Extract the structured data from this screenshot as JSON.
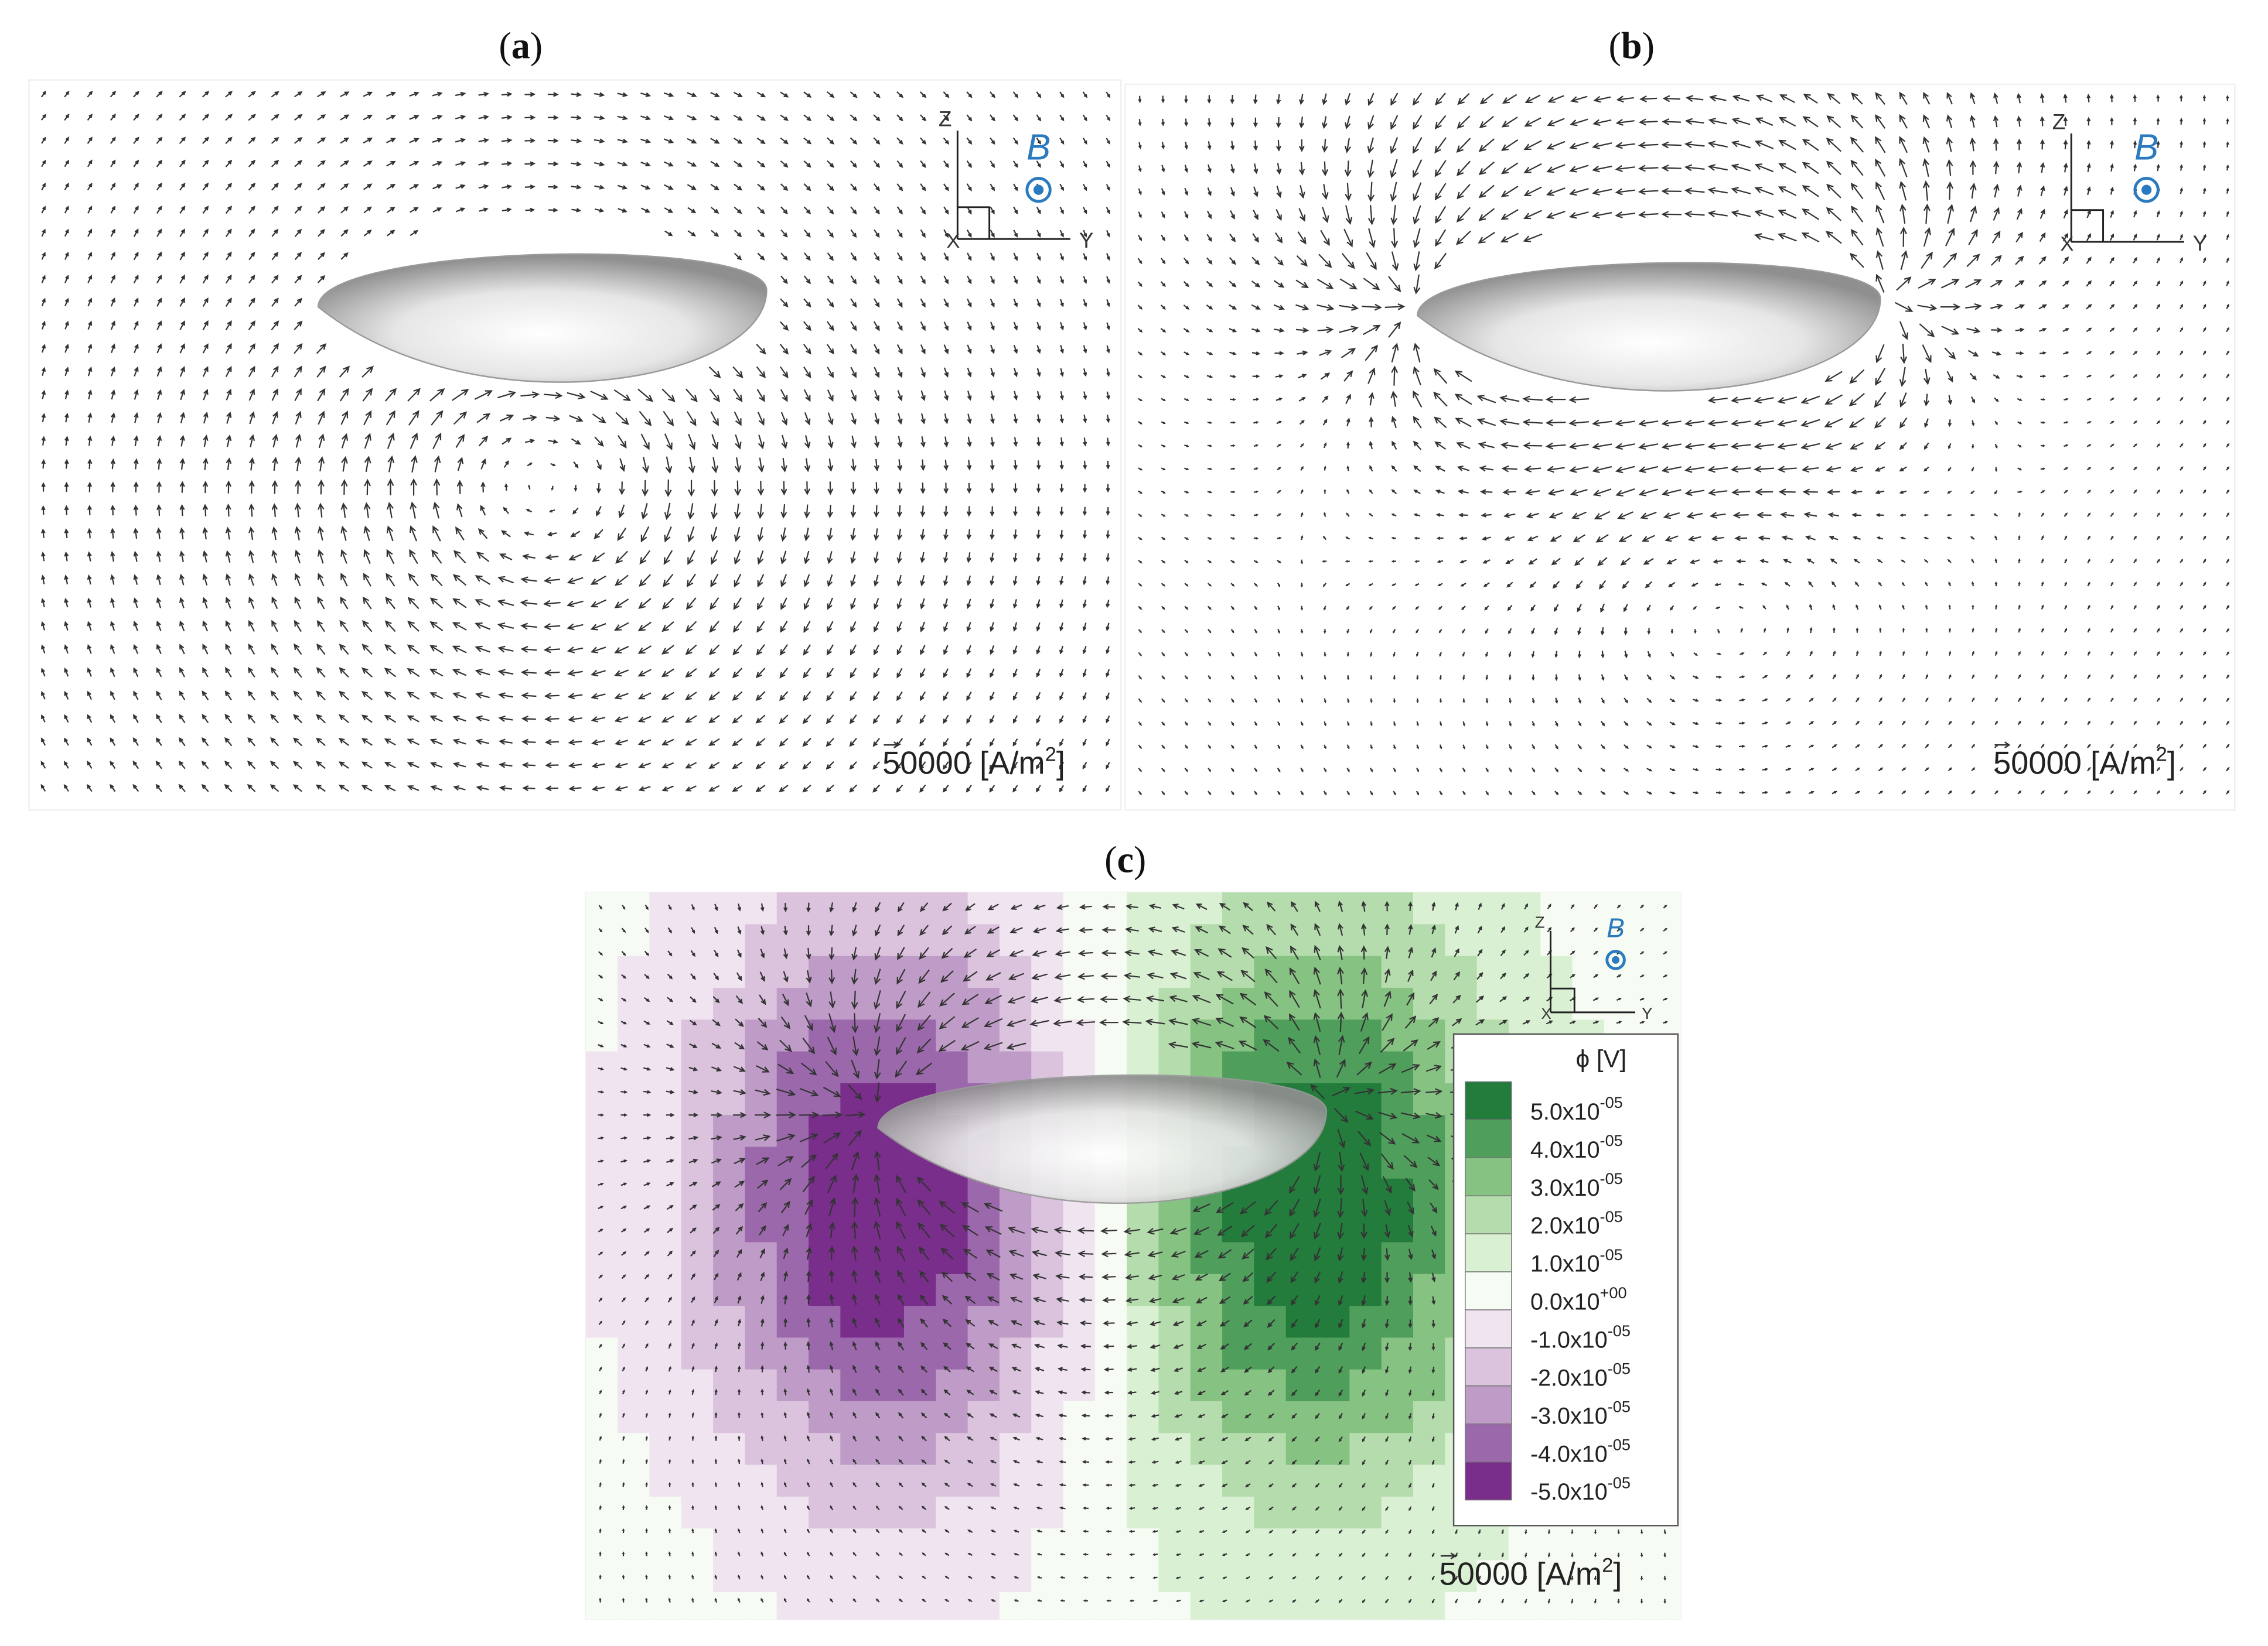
{
  "panels": [
    {
      "label": {
        "open": "(",
        "letter": "a",
        "close": ")"
      },
      "axes": {
        "z": "Z",
        "y": "Y",
        "x": "X"
      },
      "field": "B",
      "scale": {
        "value": "50000",
        "unit": "[A/m",
        "sup": "2",
        "close": "]"
      }
    },
    {
      "label": {
        "open": "(",
        "letter": "b",
        "close": ")"
      },
      "axes": {
        "z": "Z",
        "y": "Y",
        "x": "X"
      },
      "field": "B",
      "scale": {
        "value": "50000",
        "unit": "[A/m",
        "sup": "2",
        "close": "]"
      }
    },
    {
      "label": {
        "open": "(",
        "letter": "c",
        "close": ")"
      },
      "axes": {
        "z": "Z",
        "y": "Y",
        "x": "X"
      },
      "field": "B",
      "scale": {
        "value": "50000",
        "unit": "[A/m",
        "sup": "2",
        "close": "]"
      }
    }
  ],
  "legend": {
    "title": "ϕ [V]",
    "entries": [
      {
        "mantissa": "5.0x10",
        "exponent": "-05",
        "color": "#237c3c"
      },
      {
        "mantissa": "4.0x10",
        "exponent": "-05",
        "color": "#4f9e5c"
      },
      {
        "mantissa": "3.0x10",
        "exponent": "-05",
        "color": "#86c282"
      },
      {
        "mantissa": "2.0x10",
        "exponent": "-05",
        "color": "#b5dcac"
      },
      {
        "mantissa": "1.0x10",
        "exponent": "-05",
        "color": "#daf0d3"
      },
      {
        "mantissa": "0.0x10",
        "exponent": "+00",
        "color": "#f6fbf4"
      },
      {
        "mantissa": "-1.0x10",
        "exponent": "-05",
        "color": "#f1e4f1"
      },
      {
        "mantissa": "-2.0x10",
        "exponent": "-05",
        "color": "#dbc3de"
      },
      {
        "mantissa": "-3.0x10",
        "exponent": "-05",
        "color": "#bf9cc7"
      },
      {
        "mantissa": "-4.0x10",
        "exponent": "-05",
        "color": "#9b68ab"
      },
      {
        "mantissa": "-5.0x10",
        "exponent": "-05",
        "color": "#7a2e8b"
      }
    ]
  }
}
